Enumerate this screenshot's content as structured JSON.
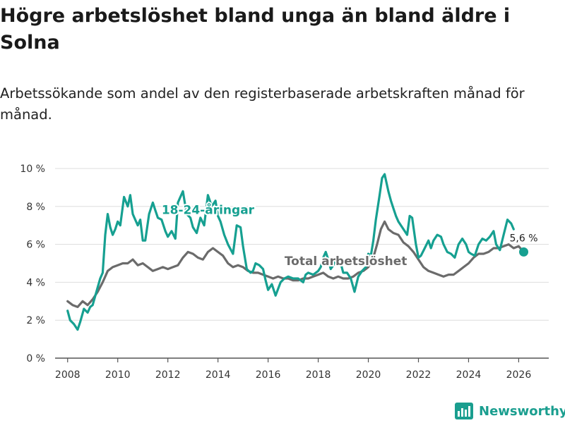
{
  "title": "Högre arbetslöshet bland unga än bland äldre i Solna",
  "subtitle": "Arbetssökande som andel av den registerbaserade arbetskraften månad för månad.",
  "brand": "Newsworthy",
  "chart_data": {
    "type": "line",
    "ylim": [
      0,
      10
    ],
    "xlim": [
      2007.5,
      2027.2
    ],
    "yticks": [
      0,
      2,
      4,
      6,
      8,
      10
    ],
    "ytick_labels": [
      "0 %",
      "2 %",
      "4 %",
      "6 %",
      "8 %",
      "10 %"
    ],
    "xticks": [
      2008,
      2010,
      2012,
      2014,
      2016,
      2018,
      2020,
      2022,
      2024,
      2026
    ],
    "xtick_labels": [
      "2008",
      "2010",
      "2012",
      "2014",
      "2016",
      "2018",
      "2020",
      "2022",
      "2024",
      "2026"
    ],
    "grid": true,
    "end_label": "5,6 %",
    "series": [
      {
        "name": "18-24-åringar",
        "color": "#16a091",
        "x": [
          2008.0,
          2008.1,
          2008.25,
          2008.4,
          2008.5,
          2008.65,
          2008.8,
          2008.9,
          2009.0,
          2009.15,
          2009.3,
          2009.4,
          2009.5,
          2009.6,
          2009.7,
          2009.8,
          2009.9,
          2010.0,
          2010.1,
          2010.25,
          2010.4,
          2010.5,
          2010.6,
          2010.7,
          2010.8,
          2010.9,
          2011.0,
          2011.1,
          2011.25,
          2011.4,
          2011.5,
          2011.6,
          2011.75,
          2011.9,
          2012.0,
          2012.15,
          2012.3,
          2012.4,
          2012.5,
          2012.6,
          2012.75,
          2012.9,
          2013.0,
          2013.15,
          2013.3,
          2013.45,
          2013.6,
          2013.75,
          2013.9,
          2014.0,
          2014.1,
          2014.25,
          2014.4,
          2014.6,
          2014.75,
          2014.9,
          2015.0,
          2015.15,
          2015.3,
          2015.4,
          2015.5,
          2015.65,
          2015.8,
          2015.9,
          2016.0,
          2016.15,
          2016.3,
          2016.5,
          2016.65,
          2016.8,
          2017.0,
          2017.2,
          2017.4,
          2017.5,
          2017.6,
          2017.8,
          2018.0,
          2018.1,
          2018.2,
          2018.3,
          2018.4,
          2018.5,
          2018.6,
          2018.75,
          2018.9,
          2019.0,
          2019.15,
          2019.3,
          2019.45,
          2019.6,
          2019.75,
          2019.9,
          2020.0,
          2020.1,
          2020.2,
          2020.3,
          2020.45,
          2020.55,
          2020.65,
          2020.8,
          2020.9,
          2021.0,
          2021.1,
          2021.2,
          2021.3,
          2021.45,
          2021.55,
          2021.65,
          2021.75,
          2021.9,
          2022.0,
          2022.1,
          2022.25,
          2022.4,
          2022.5,
          2022.6,
          2022.75,
          2022.9,
          2023.0,
          2023.15,
          2023.3,
          2023.45,
          2023.6,
          2023.75,
          2023.9,
          2024.0,
          2024.1,
          2024.25,
          2024.4,
          2024.55,
          2024.7,
          2024.85,
          2025.0,
          2025.1,
          2025.25,
          2025.4,
          2025.55,
          2025.7,
          2025.8
        ],
        "values": [
          2.5,
          2.0,
          1.8,
          1.5,
          1.9,
          2.6,
          2.4,
          2.7,
          2.8,
          3.5,
          4.2,
          4.5,
          6.5,
          7.6,
          6.9,
          6.5,
          6.8,
          7.2,
          7.0,
          8.5,
          8.0,
          8.6,
          7.6,
          7.3,
          7.0,
          7.3,
          6.2,
          6.2,
          7.6,
          8.2,
          7.8,
          7.4,
          7.3,
          6.7,
          6.4,
          6.7,
          6.3,
          8.2,
          8.5,
          8.8,
          7.6,
          7.4,
          6.9,
          6.6,
          7.4,
          7.0,
          8.6,
          8.0,
          8.3,
          7.5,
          7.2,
          6.5,
          6.0,
          5.5,
          7.0,
          6.9,
          5.9,
          4.7,
          4.5,
          4.6,
          5.0,
          4.9,
          4.7,
          4.1,
          3.6,
          3.9,
          3.3,
          4.0,
          4.2,
          4.3,
          4.2,
          4.2,
          4.0,
          4.4,
          4.5,
          4.4,
          4.6,
          4.8,
          5.3,
          5.6,
          5.2,
          4.7,
          4.9,
          5.4,
          5.0,
          4.5,
          4.5,
          4.2,
          3.5,
          4.3,
          4.6,
          4.8,
          5.5,
          5.4,
          6.2,
          7.3,
          8.6,
          9.5,
          9.7,
          8.8,
          8.3,
          7.9,
          7.5,
          7.2,
          7.0,
          6.7,
          6.5,
          7.5,
          7.4,
          6.0,
          5.3,
          5.4,
          5.8,
          6.2,
          5.8,
          6.2,
          6.5,
          6.4,
          6.0,
          5.6,
          5.5,
          5.3,
          6.0,
          6.3,
          6.0,
          5.6,
          5.5,
          5.4,
          6.0,
          6.3,
          6.2,
          6.4,
          6.7,
          6.0,
          5.7,
          6.5,
          7.3,
          7.1,
          6.8
        ]
      },
      {
        "name": "Total arbetslöshet",
        "color": "#6b6b6b",
        "x": [
          2008.0,
          2008.2,
          2008.4,
          2008.6,
          2008.8,
          2009.0,
          2009.2,
          2009.4,
          2009.6,
          2009.8,
          2010.0,
          2010.2,
          2010.4,
          2010.6,
          2010.8,
          2011.0,
          2011.2,
          2011.4,
          2011.6,
          2011.8,
          2012.0,
          2012.2,
          2012.4,
          2012.6,
          2012.8,
          2013.0,
          2013.2,
          2013.4,
          2013.6,
          2013.8,
          2014.0,
          2014.2,
          2014.4,
          2014.6,
          2014.8,
          2015.0,
          2015.2,
          2015.4,
          2015.6,
          2015.8,
          2016.0,
          2016.2,
          2016.4,
          2016.6,
          2016.8,
          2017.0,
          2017.2,
          2017.4,
          2017.6,
          2017.8,
          2018.0,
          2018.2,
          2018.4,
          2018.6,
          2018.8,
          2019.0,
          2019.2,
          2019.4,
          2019.6,
          2019.8,
          2020.0,
          2020.2,
          2020.35,
          2020.5,
          2020.65,
          2020.8,
          2021.0,
          2021.2,
          2021.4,
          2021.6,
          2021.8,
          2022.0,
          2022.2,
          2022.4,
          2022.6,
          2022.8,
          2023.0,
          2023.2,
          2023.4,
          2023.6,
          2023.8,
          2024.0,
          2024.2,
          2024.4,
          2024.6,
          2024.8,
          2025.0,
          2025.2,
          2025.4,
          2025.6,
          2025.8,
          2026.0,
          2026.2
        ],
        "values": [
          3.0,
          2.8,
          2.7,
          3.0,
          2.8,
          3.1,
          3.5,
          4.0,
          4.6,
          4.8,
          4.9,
          5.0,
          5.0,
          5.2,
          4.9,
          5.0,
          4.8,
          4.6,
          4.7,
          4.8,
          4.7,
          4.8,
          4.9,
          5.3,
          5.6,
          5.5,
          5.3,
          5.2,
          5.6,
          5.8,
          5.6,
          5.4,
          5.0,
          4.8,
          4.9,
          4.8,
          4.6,
          4.5,
          4.5,
          4.4,
          4.3,
          4.2,
          4.3,
          4.2,
          4.2,
          4.1,
          4.1,
          4.2,
          4.2,
          4.3,
          4.4,
          4.5,
          4.3,
          4.2,
          4.3,
          4.2,
          4.2,
          4.3,
          4.5,
          4.6,
          4.8,
          5.3,
          6.0,
          6.8,
          7.2,
          6.8,
          6.6,
          6.5,
          6.1,
          5.9,
          5.6,
          5.2,
          4.8,
          4.6,
          4.5,
          4.4,
          4.3,
          4.4,
          4.4,
          4.6,
          4.8,
          5.0,
          5.3,
          5.5,
          5.5,
          5.6,
          5.8,
          5.8,
          5.9,
          6.0,
          5.8,
          5.9,
          5.6
        ]
      }
    ],
    "annotations": [
      {
        "text": "18-24-åringar",
        "x": 2013.6,
        "y": 7.6,
        "series": 0
      },
      {
        "text": "Total arbetslöshet",
        "x": 2019.1,
        "y": 4.9,
        "series": 1
      }
    ]
  }
}
